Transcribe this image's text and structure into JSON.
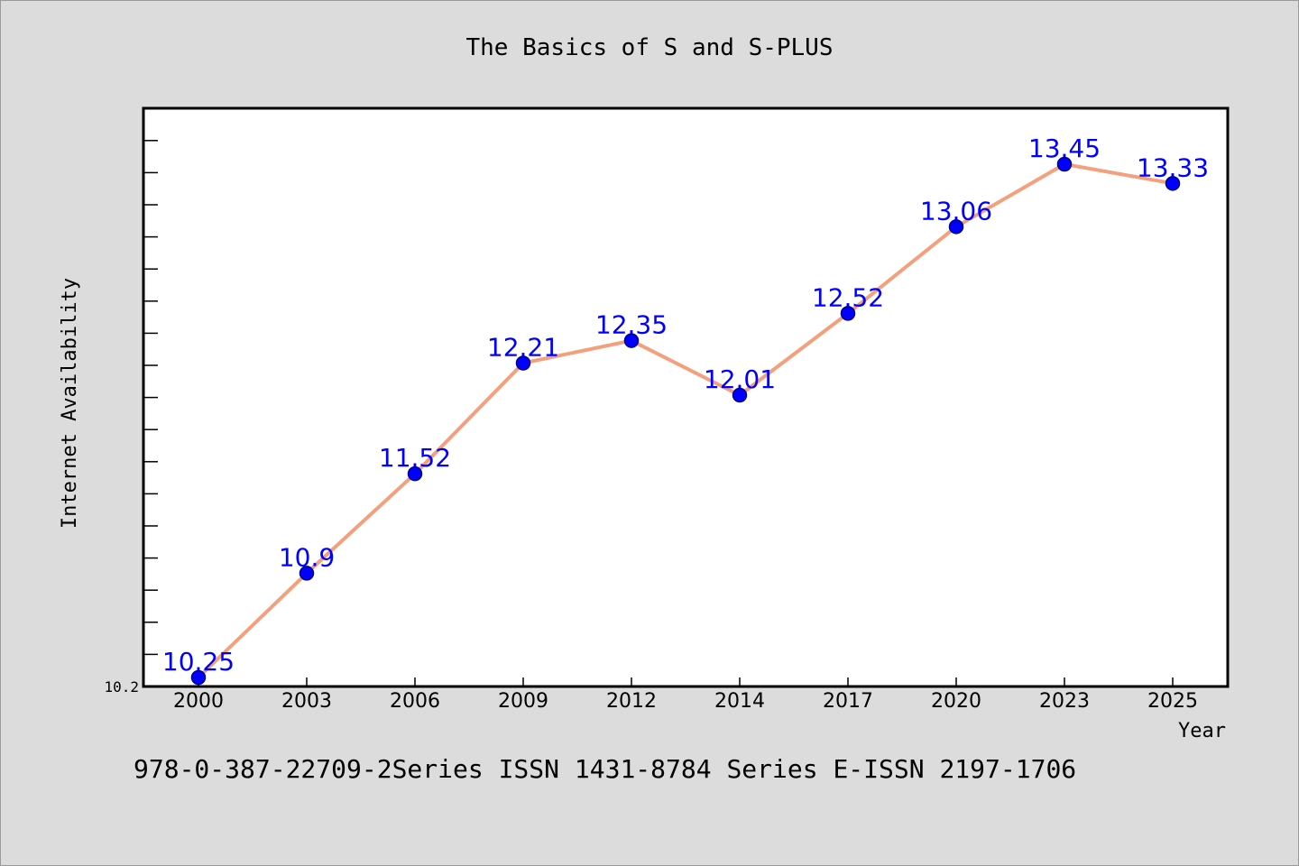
{
  "chart_data": {
    "type": "line",
    "title": "The Basics of S and S-PLUS",
    "xlabel": "Year",
    "ylabel": "Internet Availability",
    "categories": [
      "2000",
      "2003",
      "2006",
      "2009",
      "2012",
      "2014",
      "2017",
      "2020",
      "2023",
      "2025"
    ],
    "series": [
      {
        "values": [
          10.25,
          10.9,
          11.52,
          12.21,
          12.35,
          12.01,
          12.52,
          13.06,
          13.45,
          13.33
        ],
        "labels": [
          "10.25",
          "10.9",
          "11.52",
          "12.21",
          "12.35",
          "12.01",
          "12.52",
          "13.06",
          "13.45",
          "13.33"
        ]
      }
    ],
    "ylim": [
      10.2,
      13.8
    ],
    "y_tick_labels": [
      "10.2"
    ],
    "grid": false,
    "colors": {
      "line": "#f4a07c",
      "marker": "#0000ff",
      "marker_edge": "#00008b",
      "data_label": "#0000ff",
      "background": "#dcdcdc",
      "plot_area": "#ffffff"
    }
  },
  "footer": {
    "text": "978-0-387-22709-2Series ISSN 1431-8784 Series E-ISSN 2197-1706"
  }
}
